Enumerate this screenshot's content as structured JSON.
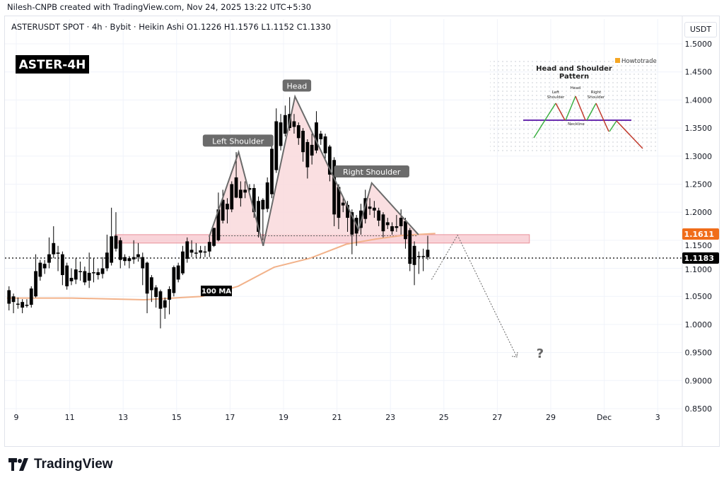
{
  "header": {
    "credit": "Nilesh-CNPB created with TradingView.com, Nov 24, 2025 13:22 UTC+5:30",
    "legend": "ASTERUSDT SPOT · 4h · Bybit · Heikin Ashi  O1.1226  H1.1576  L1.1152  C1.1330",
    "currency": "USDT"
  },
  "footer": {
    "logo_text": "TradingView",
    "logo_icon": "tradingview-logo-icon"
  },
  "chart_data": {
    "type": "candlestick",
    "title": "ASTER-4H",
    "symbol": "ASTERUSDT",
    "interval": "4h",
    "chart_style": "Heikin Ashi",
    "start": "2025-11-08 17:30",
    "candle_color": "#000000",
    "x_axis": {
      "unit": "day of month",
      "range": [
        8.6,
        34.7
      ],
      "ticks": [
        {
          "day": 9,
          "label": "9"
        },
        {
          "day": 11,
          "label": "11"
        },
        {
          "day": 13,
          "label": "13"
        },
        {
          "day": 15,
          "label": "15"
        },
        {
          "day": 17,
          "label": "17"
        },
        {
          "day": 19,
          "label": "19"
        },
        {
          "day": 21,
          "label": "21"
        },
        {
          "day": 23,
          "label": "23"
        },
        {
          "day": 25,
          "label": "25"
        },
        {
          "day": 27,
          "label": "27"
        },
        {
          "day": 29,
          "label": "29"
        },
        {
          "day": 31,
          "label": "Dec"
        },
        {
          "day": 33,
          "label": "3"
        }
      ]
    },
    "y_axis": {
      "range": [
        0.835,
        1.52
      ],
      "ticks": [
        "1.5000",
        "1.4500",
        "1.4000",
        "1.3500",
        "1.3000",
        "1.2500",
        "1.2000",
        "1.1500",
        "1.1000",
        "1.0500",
        "1.0000",
        "0.9500",
        "0.9000",
        "0.8500"
      ],
      "grid": true
    },
    "ohlc": [
      [
        1.061,
        1.068,
        1.025,
        1.037
      ],
      [
        1.05,
        1.055,
        1.02,
        1.04
      ],
      [
        1.037,
        1.048,
        1.028,
        1.036
      ],
      [
        1.04,
        1.045,
        1.02,
        1.03
      ],
      [
        1.035,
        1.045,
        1.03,
        1.035
      ],
      [
        1.035,
        1.068,
        1.03,
        1.064
      ],
      [
        1.05,
        1.125,
        1.048,
        1.095
      ],
      [
        1.085,
        1.115,
        1.078,
        1.11
      ],
      [
        1.1,
        1.115,
        1.09,
        1.108
      ],
      [
        1.11,
        1.155,
        1.1,
        1.125
      ],
      [
        1.125,
        1.175,
        1.118,
        1.145
      ],
      [
        1.128,
        1.14,
        1.095,
        1.126
      ],
      [
        1.125,
        1.13,
        1.07,
        1.088
      ],
      [
        1.105,
        1.11,
        1.062,
        1.068
      ],
      [
        1.083,
        1.1,
        1.07,
        1.077
      ],
      [
        1.08,
        1.118,
        1.072,
        1.098
      ],
      [
        1.095,
        1.112,
        1.078,
        1.094
      ],
      [
        1.095,
        1.103,
        1.07,
        1.075
      ],
      [
        1.078,
        1.128,
        1.065,
        1.092
      ],
      [
        1.093,
        1.118,
        1.075,
        1.092
      ],
      [
        1.088,
        1.1,
        1.08,
        1.093
      ],
      [
        1.09,
        1.12,
        1.082,
        1.1
      ],
      [
        1.1,
        1.16,
        1.095,
        1.128
      ],
      [
        1.11,
        1.208,
        1.105,
        1.157
      ],
      [
        1.158,
        1.2,
        1.13,
        1.135
      ],
      [
        1.15,
        1.155,
        1.1,
        1.115
      ],
      [
        1.12,
        1.125,
        1.105,
        1.113
      ],
      [
        1.118,
        1.122,
        1.1,
        1.113
      ],
      [
        1.12,
        1.15,
        1.108,
        1.116
      ],
      [
        1.12,
        1.145,
        1.112,
        1.125
      ],
      [
        1.12,
        1.128,
        1.07,
        1.1
      ],
      [
        1.11,
        1.112,
        1.02,
        1.055
      ],
      [
        1.084,
        1.088,
        1.04,
        1.061
      ],
      [
        1.066,
        1.07,
        1.03,
        1.049
      ],
      [
        1.059,
        1.062,
        0.993,
        1.028
      ],
      [
        1.043,
        1.048,
        1.01,
        1.03
      ],
      [
        1.044,
        1.068,
        1.018,
        1.063
      ],
      [
        1.056,
        1.105,
        1.05,
        1.102
      ],
      [
        1.08,
        1.11,
        1.075,
        1.105
      ],
      [
        1.091,
        1.14,
        1.088,
        1.13
      ],
      [
        1.117,
        1.155,
        1.11,
        1.148
      ],
      [
        1.133,
        1.15,
        1.12,
        1.128
      ],
      [
        1.128,
        1.145,
        1.118,
        1.128
      ],
      [
        1.128,
        1.14,
        1.118,
        1.132
      ],
      [
        1.13,
        1.14,
        1.12,
        1.13
      ],
      [
        1.13,
        1.158,
        1.12,
        1.147
      ],
      [
        1.14,
        1.172,
        1.138,
        1.172
      ],
      [
        1.15,
        1.235,
        1.148,
        1.205
      ],
      [
        1.185,
        1.24,
        1.18,
        1.222
      ],
      [
        1.205,
        1.225,
        1.18,
        1.215
      ],
      [
        1.205,
        1.255,
        1.2,
        1.25
      ],
      [
        1.262,
        1.307,
        1.225,
        1.226
      ],
      [
        1.24,
        1.255,
        1.21,
        1.225
      ],
      [
        1.235,
        1.255,
        1.225,
        1.24
      ],
      [
        1.24,
        1.25,
        1.23,
        1.243
      ],
      [
        1.243,
        1.25,
        1.19,
        1.2
      ],
      [
        1.22,
        1.228,
        1.155,
        1.165
      ],
      [
        1.205,
        1.225,
        1.15,
        1.222
      ],
      [
        1.206,
        1.262,
        1.2,
        1.253
      ],
      [
        1.232,
        1.332,
        1.225,
        1.313
      ],
      [
        1.275,
        1.385,
        1.27,
        1.362
      ],
      [
        1.318,
        1.375,
        1.31,
        1.36
      ],
      [
        1.34,
        1.39,
        1.335,
        1.373
      ],
      [
        1.375,
        1.405,
        1.345,
        1.35
      ],
      [
        1.362,
        1.375,
        1.34,
        1.352
      ],
      [
        1.355,
        1.36,
        1.32,
        1.332
      ],
      [
        1.345,
        1.35,
        1.29,
        1.307
      ],
      [
        1.325,
        1.33,
        1.26,
        1.28
      ],
      [
        1.32,
        1.34,
        1.285,
        1.301
      ],
      [
        1.31,
        1.38,
        1.305,
        1.36
      ],
      [
        1.34,
        1.345,
        1.32,
        1.33
      ],
      [
        1.335,
        1.34,
        1.295,
        1.305
      ],
      [
        1.317,
        1.32,
        1.255,
        1.267
      ],
      [
        1.293,
        1.298,
        1.175,
        1.196
      ],
      [
        1.245,
        1.25,
        1.17,
        1.19
      ],
      [
        1.217,
        1.225,
        1.2,
        1.212
      ],
      [
        1.213,
        1.22,
        1.165,
        1.19
      ],
      [
        1.2,
        1.205,
        1.125,
        1.16
      ],
      [
        1.19,
        1.195,
        1.14,
        1.162
      ],
      [
        1.172,
        1.215,
        1.16,
        1.203
      ],
      [
        1.188,
        1.24,
        1.18,
        1.225
      ],
      [
        1.21,
        1.225,
        1.195,
        1.206
      ],
      [
        1.208,
        1.22,
        1.19,
        1.203
      ],
      [
        1.203,
        1.208,
        1.175,
        1.185
      ],
      [
        1.196,
        1.2,
        1.155,
        1.166
      ],
      [
        1.182,
        1.19,
        1.17,
        1.177
      ],
      [
        1.175,
        1.182,
        1.16,
        1.166
      ],
      [
        1.175,
        1.195,
        1.165,
        1.172
      ],
      [
        1.19,
        1.205,
        1.16,
        1.175
      ],
      [
        1.184,
        1.19,
        1.135,
        1.152
      ],
      [
        1.168,
        1.172,
        1.095,
        1.108
      ],
      [
        1.14,
        1.148,
        1.07,
        1.106
      ],
      [
        1.122,
        1.13,
        1.09,
        1.12
      ],
      [
        1.121,
        1.135,
        1.095,
        1.122
      ],
      [
        1.12,
        1.158,
        1.115,
        1.133
      ]
    ],
    "moving_average": {
      "label": "100 MA",
      "color": "#f2b28a",
      "points": [
        [
          8.65,
          1.047
        ],
        [
          11.08,
          1.047
        ],
        [
          13.78,
          1.044
        ],
        [
          15.95,
          1.05
        ],
        [
          17.3,
          1.068
        ],
        [
          18.65,
          1.102
        ],
        [
          20.0,
          1.118
        ],
        [
          21.35,
          1.143
        ],
        [
          22.43,
          1.152
        ],
        [
          23.51,
          1.159
        ],
        [
          24.68,
          1.162
        ]
      ]
    },
    "price_labels": [
      {
        "value": "1.1611",
        "price": 1.1611,
        "color": "#f06d1a"
      },
      {
        "value": "1.1183",
        "price": 1.1183,
        "color": "#000000"
      }
    ],
    "resistance_zone": {
      "from_day": 12.7,
      "to_day": 28.2,
      "low": 1.145,
      "high": 1.16,
      "color": "#f7c6cc"
    },
    "neckline": {
      "from_day": 16.2,
      "to_day": 24.0,
      "price": 1.158
    },
    "pattern": {
      "color": "#f9d9dc",
      "points": [
        [
          16.22,
          1.156
        ],
        [
          17.32,
          1.307
        ],
        [
          18.24,
          1.14
        ],
        [
          19.43,
          1.406
        ],
        [
          21.81,
          1.169
        ],
        [
          22.3,
          1.252
        ],
        [
          24.05,
          1.16
        ]
      ],
      "labels": [
        {
          "text": "Left Shoulder",
          "day": 17.3,
          "price": 1.327
        },
        {
          "text": "Head",
          "day": 19.5,
          "price": 1.425
        },
        {
          "text": "Right Shoulder",
          "day": 22.3,
          "price": 1.272
        }
      ]
    },
    "projection": {
      "points": [
        [
          24.54,
          1.08
        ],
        [
          25.51,
          1.159
        ],
        [
          27.73,
          0.942
        ]
      ],
      "annotation": "?",
      "annotation_day": 28.6,
      "annotation_price": 0.948
    },
    "inset": {
      "title_line1": "Head and Shoulder",
      "title_line2": "Pattern",
      "brand": "Howtotrade",
      "left_label_1": "Left",
      "left_label_2": "Shoulder",
      "head_label": "Head",
      "right_label_1": "Right",
      "right_label_2": "Shoulder",
      "neckline_label": "Neckline"
    }
  }
}
